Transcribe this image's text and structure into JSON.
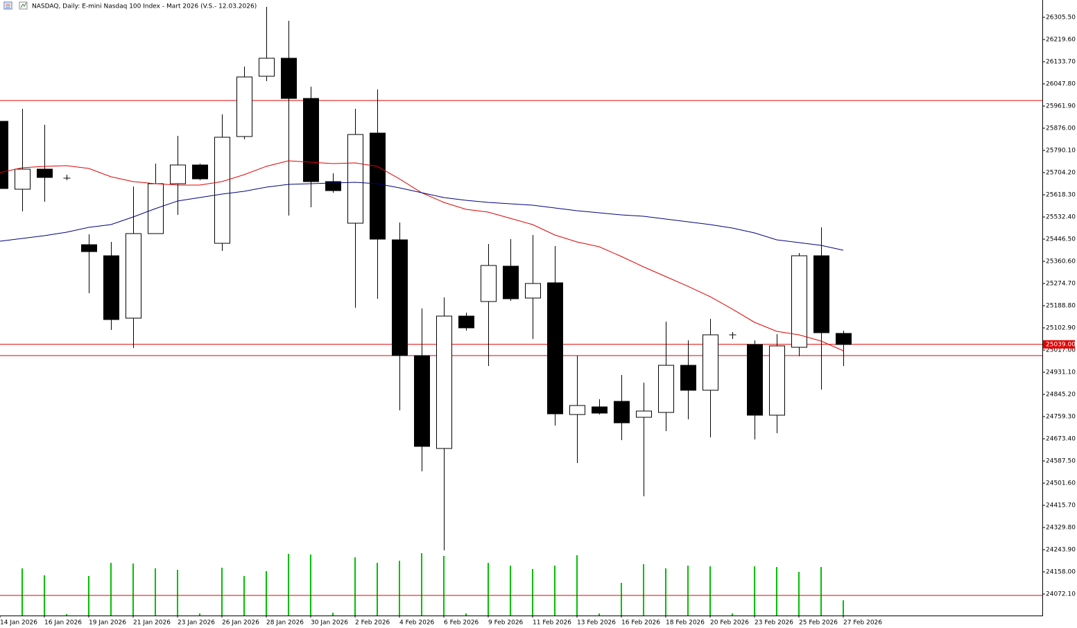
{
  "chart_data": {
    "type": "candlestick",
    "title": "NASDAQ, Daily:  E-mini Nasdaq 100 Index - Mart 2026 (V.S.- 12.03.2026)",
    "categories": [
      "14 Jan 2026",
      null,
      "16 Jan 2026",
      null,
      "19 Jan 2026",
      null,
      "21 Jan 2026",
      null,
      "23 Jan 2026",
      null,
      "26 Jan 2026",
      null,
      "28 Jan 2026",
      null,
      "30 Jan 2026",
      null,
      "2 Feb 2026",
      null,
      "4 Feb 2026",
      null,
      "6 Feb 2026",
      null,
      "9 Feb 2026",
      null,
      "11 Feb 2026",
      null,
      "13 Feb 2026",
      null,
      "16 Feb 2026",
      null,
      "18 Feb 2026",
      null,
      "20 Feb 2026",
      null,
      "23 Feb 2026",
      null,
      "25 Feb 2026",
      null,
      "27 Feb 2026"
    ],
    "open": [
      25902.8,
      25639.8,
      25717.6,
      25682.7,
      25425.0,
      25382.1,
      25140.5,
      25468.0,
      25661.2,
      25733.7,
      25430.4,
      25843.8,
      26077.3,
      26147.1,
      25991.4,
      25669.3,
      25508.2,
      25857.2,
      25443.8,
      24995.5,
      24635.8,
      25148.5,
      25204.9,
      25341.8,
      25218.3,
      25277.4,
      24767.3,
      24796.9,
      24818.3,
      24756.6,
      24775.4,
      24957.9,
      24861.3,
      25076.0,
      25038.5,
      24764.7,
      25027.7,
      25382.1,
      25081.4
    ],
    "high": [
      25902.8,
      25951.2,
      25889.4,
      25696.1,
      25465.3,
      25435.8,
      25650.5,
      25739.1,
      25846.5,
      25739.1,
      25929.7,
      26114.9,
      26345.8,
      26292.1,
      26037.1,
      25701.5,
      25951.2,
      26026.3,
      25510.9,
      25178.1,
      25221.0,
      25161.9,
      25427.7,
      25446.5,
      25462.6,
      25419.6,
      24995.5,
      24826.4,
      24920.3,
      24890.8,
      25127.0,
      25054.6,
      25137.8,
      25086.8,
      25054.6,
      25078.7,
      25392.8,
      25492.1,
      25092.2
    ],
    "low": [
      25642.5,
      25553.9,
      25591.4,
      25674.7,
      25237.1,
      25094.8,
      25025.0,
      25468.0,
      25540.4,
      25674.7,
      25400.9,
      25833.0,
      26058.5,
      25537.8,
      25570.0,
      25626.3,
      25180.7,
      25215.6,
      24783.4,
      24547.2,
      24241.2,
      25092.2,
      24955.2,
      25207.6,
      25059.9,
      24724.4,
      24579.4,
      24767.3,
      24668.0,
      24450.6,
      24702.9,
      24748.5,
      24678.8,
      25059.9,
      24670.7,
      24694.9,
      24992.8,
      24864.0,
      24955.2
    ],
    "close": [
      25642.5,
      25717.6,
      25685.4,
      25682.7,
      25398.2,
      25135.1,
      25468.0,
      25661.2,
      25733.7,
      25680.0,
      25841.1,
      26074.6,
      26147.1,
      25991.4,
      25669.3,
      25634.4,
      25851.8,
      25446.5,
      24995.5,
      24643.9,
      25148.5,
      25102.9,
      25344.5,
      25215.6,
      25274.7,
      24770.0,
      24802.2,
      24772.7,
      24735.1,
      24780.8,
      24957.9,
      24861.3,
      25076.0,
      25076.0,
      24764.7,
      25033.1,
      25382.1,
      25084.1,
      25038.5
    ],
    "up_color": "#ffffff",
    "down_color": "#000000",
    "ma": [
      {
        "color": "#e00000",
        "values": [
          25704.2,
          25723.0,
          25728.3,
          25731.0,
          25720.3,
          25688.1,
          25669.3,
          25661.2,
          25655.9,
          25655.9,
          25669.3,
          25696.1,
          25728.3,
          25749.8,
          25744.5,
          25739.1,
          25741.8,
          25728.3,
          25680.0,
          25626.3,
          25588.8,
          25561.9,
          25551.2,
          25527.0,
          25502.9,
          25462.6,
          25435.7,
          25417.0,
          25379.4,
          25339.1,
          25301.5,
          25263.9,
          25223.7,
          25175.4,
          25124.4,
          25089.5,
          25076.0,
          25051.9,
          25014.3
        ]
      },
      {
        "color": "#00007f",
        "values": [
          25438.4,
          25449.2,
          25459.9,
          25473.3,
          25492.1,
          25502.9,
          25532.4,
          25564.6,
          25594.1,
          25607.5,
          25621.0,
          25631.7,
          25647.8,
          25658.5,
          25661.2,
          25663.9,
          25666.6,
          25661.2,
          25645.1,
          25626.3,
          25607.5,
          25596.8,
          25588.8,
          25583.4,
          25578.0,
          25567.3,
          25556.5,
          25548.5,
          25540.4,
          25535.1,
          25524.3,
          25513.6,
          25502.9,
          25489.4,
          25470.6,
          25443.8,
          25433.1,
          25422.3,
          25403.5
        ]
      }
    ],
    "volume": {
      "color": "#00c000",
      "values": [
        null,
        68,
        58,
        2,
        57,
        76,
        75,
        68,
        66,
        3,
        69,
        57,
        64,
        89,
        88,
        4,
        84,
        76,
        79,
        90,
        86,
        3,
        76,
        72,
        67,
        72,
        87,
        3,
        47,
        74,
        68,
        72,
        71,
        3,
        71,
        70,
        63,
        70,
        22
      ]
    },
    "levels": [
      25983.4,
      24995.5,
      24066.7
    ],
    "level_color": "#e00000",
    "last": {
      "value": 25039,
      "label": "25039.00"
    },
    "ylim": [
      23988.9,
      26372.6
    ],
    "yticks": [
      {
        "value": 26305.5,
        "label": "26305.50"
      },
      {
        "value": 26219.6,
        "label": "26219.60"
      },
      {
        "value": 26133.7,
        "label": "26133.70"
      },
      {
        "value": 26047.8,
        "label": "26047.80"
      },
      {
        "value": 25961.9,
        "label": "25961.90"
      },
      {
        "value": 25876,
        "label": "25876.00"
      },
      {
        "value": 25790.1,
        "label": "25790.10"
      },
      {
        "value": 25704.2,
        "label": "25704.20"
      },
      {
        "value": 25618.3,
        "label": "25618.30"
      },
      {
        "value": 25532.4,
        "label": "25532.40"
      },
      {
        "value": 25446.5,
        "label": "25446.50"
      },
      {
        "value": 25360.6,
        "label": "25360.60"
      },
      {
        "value": 25274.7,
        "label": "25274.70"
      },
      {
        "value": 25188.8,
        "label": "25188.80"
      },
      {
        "value": 25102.9,
        "label": "25102.90"
      },
      {
        "value": 25017,
        "label": "25017.00"
      },
      {
        "value": 24931.1,
        "label": "24931.10"
      },
      {
        "value": 24845.2,
        "label": "24845.20"
      },
      {
        "value": 24759.3,
        "label": "24759.30"
      },
      {
        "value": 24673.4,
        "label": "24673.40"
      },
      {
        "value": 24587.5,
        "label": "24587.50"
      },
      {
        "value": 24501.6,
        "label": "24501.60"
      },
      {
        "value": 24415.7,
        "label": "24415.70"
      },
      {
        "value": 24329.8,
        "label": "24329.80"
      },
      {
        "value": 24243.9,
        "label": "24243.90"
      },
      {
        "value": 24158,
        "label": "24158.00"
      },
      {
        "value": 24072.1,
        "label": "24072.10"
      }
    ],
    "grid": false
  }
}
